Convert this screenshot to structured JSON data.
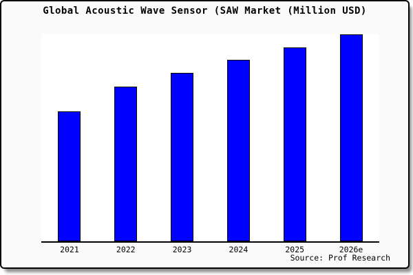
{
  "chart_data": {
    "type": "bar",
    "title": "Global Acoustic Wave Sensor (SAW Market (Million USD)",
    "categories": [
      "2021",
      "2022",
      "2023",
      "2024",
      "2025",
      "2026e"
    ],
    "values_relative_pct_of_max": [
      62.8,
      74.8,
      81.4,
      87.7,
      93.7,
      100
    ],
    "xlabel": "",
    "ylabel": "",
    "y_axis_labels_visible": false,
    "grid": false,
    "legend": false,
    "source_note": "Source: Prof Research",
    "bar_color": "#0000ff",
    "bar_border_color": "#000000",
    "plot_background": "#ffffff",
    "card_background": "#fafafa",
    "axis_color": "#000000",
    "text_color": "#000000"
  }
}
